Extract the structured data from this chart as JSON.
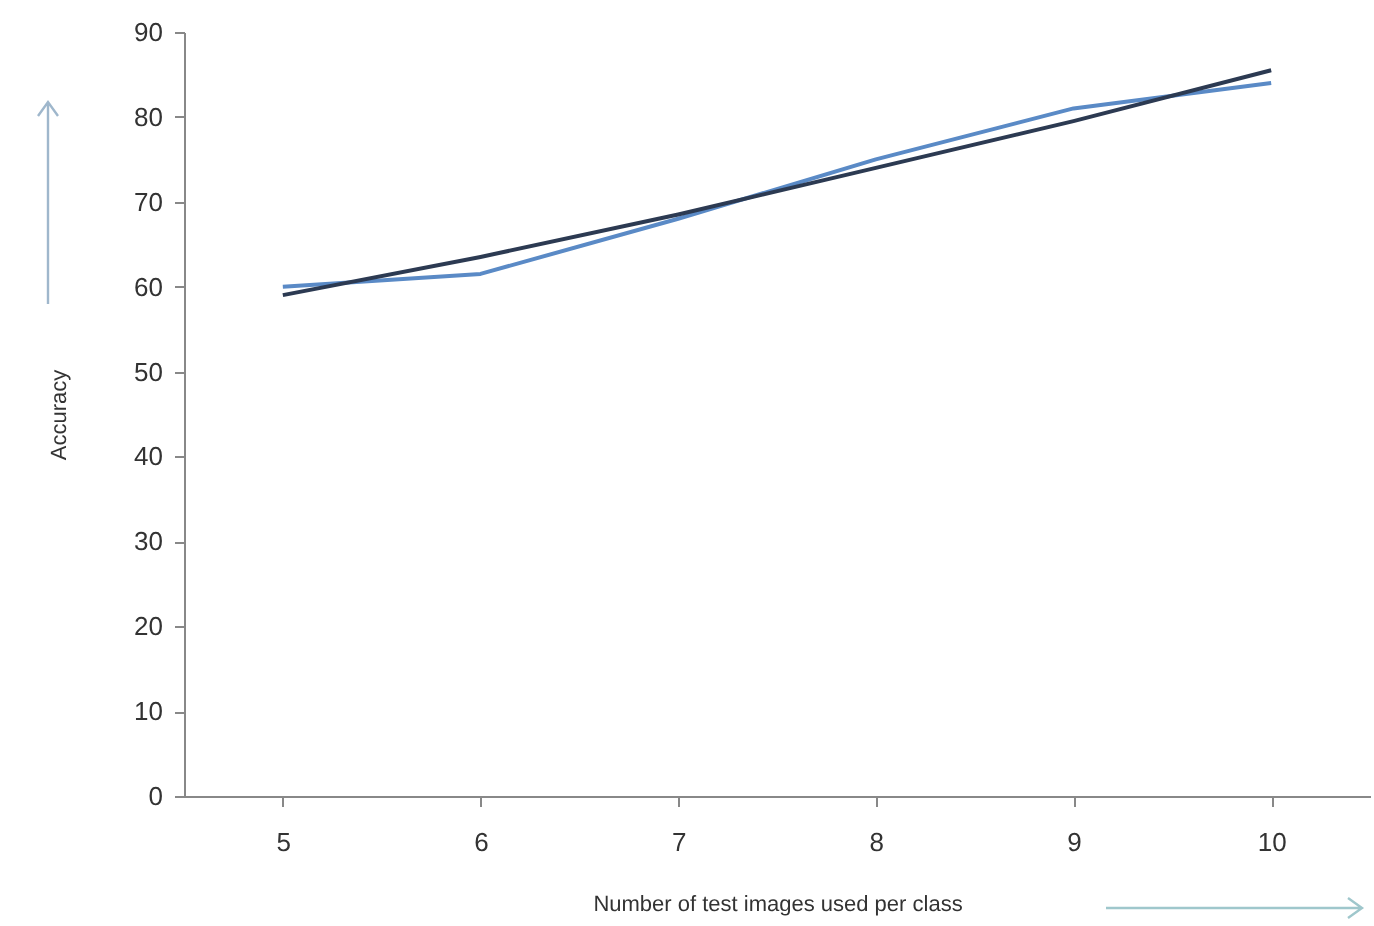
{
  "chart_data": {
    "type": "line",
    "xlabel": "Number of test images used per class",
    "ylabel": "Accuracy",
    "categories": [
      "5",
      "6",
      "7",
      "8",
      "9",
      "10"
    ],
    "series": [
      {
        "color": "#5a8ac6",
        "values": [
          60,
          61.5,
          68,
          75,
          81,
          84
        ]
      },
      {
        "color": "#2c3a52",
        "values": [
          59,
          63.5,
          68.5,
          74,
          79.5,
          85.5
        ]
      }
    ],
    "ylim": [
      0,
      90
    ],
    "yticks": [
      0,
      10,
      20,
      30,
      40,
      50,
      60,
      70,
      80,
      90
    ],
    "grid": false,
    "marker": "none"
  }
}
